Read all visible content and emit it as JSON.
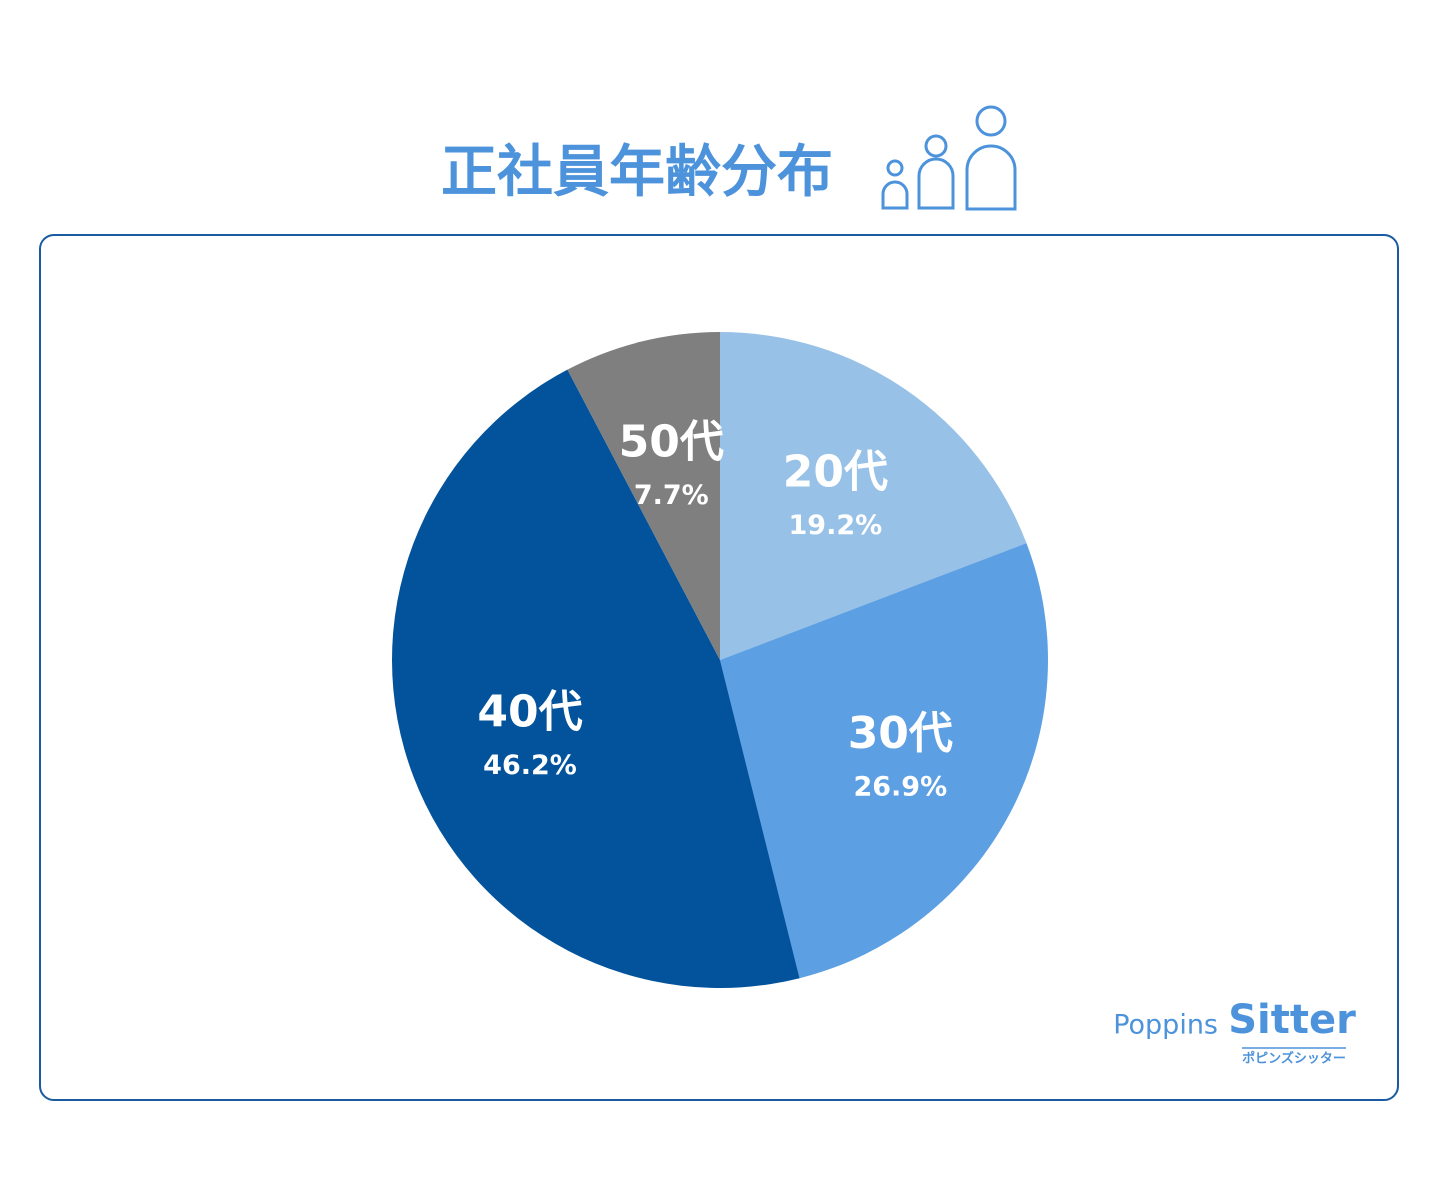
{
  "chart_data": {
    "type": "pie",
    "title": "正社員年齢分布",
    "categories": [
      "20代",
      "30代",
      "40代",
      "50代"
    ],
    "values": [
      19.2,
      26.9,
      46.2,
      7.7
    ],
    "value_labels": [
      "19.2%",
      "26.9%",
      "46.2%",
      "7.7%"
    ],
    "colors": [
      "#97c1e6",
      "#5c9fe3",
      "#02539b",
      "#7f7f7f"
    ],
    "logo": {
      "main": "Poppins",
      "accent": "Sitter",
      "sub": "ポピンズシッター"
    }
  }
}
